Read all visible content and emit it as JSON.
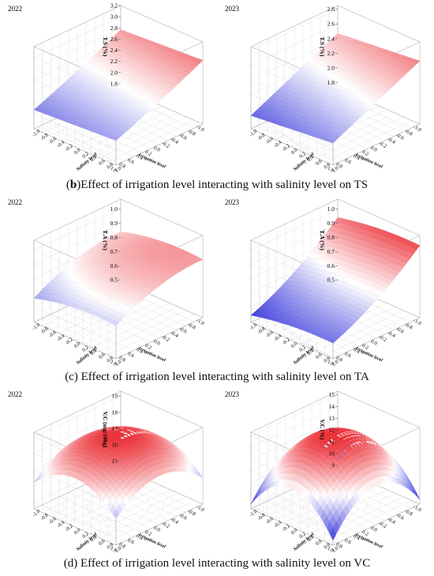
{
  "captions": {
    "b_letter": "b",
    "b_text": ")Effect of irrigation level interacting with salinity level on TS",
    "c_text": "(c) Effect of irrigation level interacting with salinity level on TA",
    "d_text": "(d) Effect of irrigation level interacting with salinity level on VC"
  },
  "axis_labels": {
    "x": "Irrigation level",
    "y": "Salinity level"
  },
  "axis_ticks": [
    "-1.0",
    "-0.8",
    "-0.6",
    "-0.4",
    "-0.2",
    "0.0",
    "0.2",
    "0.4",
    "0.6",
    "0.8",
    "1.0"
  ],
  "colors": {
    "high": "#e8141c",
    "mid": "#ffffff",
    "low": "#1a1ad6"
  },
  "chart_data": [
    {
      "id": "ts2022",
      "type": "surface",
      "year": "2022",
      "zlabel": "T.S (%)",
      "zticks": [
        "1.8",
        "2.0",
        "2.2",
        "2.4",
        "2.6",
        "2.8",
        "3.0",
        "3.2"
      ],
      "zlim": [
        1.73,
        3.2
      ],
      "model": {
        "a0": 2.45,
        "a1": -0.35,
        "a2": 0.05,
        "a11": 0.02,
        "a22": 0.0,
        "a12": 0.0
      },
      "xlim": [
        -1,
        1
      ],
      "ylim": [
        -1,
        1
      ],
      "grid": true
    },
    {
      "id": "ts2023",
      "type": "surface",
      "year": "2023",
      "zlabel": "T.S (%)",
      "zticks": [
        "1.8",
        "2.0",
        "2.2",
        "2.4",
        "2.6",
        "2.8"
      ],
      "zlim": [
        1.73,
        2.85
      ],
      "model": {
        "a0": 2.25,
        "a1": -0.28,
        "a2": 0.06,
        "a11": 0.0,
        "a22": 0.0,
        "a12": 0.0
      },
      "xlim": [
        -1,
        1
      ],
      "ylim": [
        -1,
        1
      ],
      "grid": true
    },
    {
      "id": "ta2022",
      "type": "surface",
      "year": "2022",
      "zlabel": "T.A (%)",
      "zticks": [
        "0.5",
        "0.6",
        "0.7",
        "0.8",
        "0.9",
        "1.0"
      ],
      "zlim": [
        0.49,
        1.07
      ],
      "model": {
        "a0": 0.86,
        "a1": -0.09,
        "a2": 0.03,
        "a11": -0.05,
        "a22": -0.03,
        "a12": 0.0
      },
      "xlim": [
        -1,
        1
      ],
      "ylim": [
        -1,
        1
      ],
      "grid": true
    },
    {
      "id": "ta2023",
      "type": "surface",
      "year": "2023",
      "zlabel": "T.A (%)",
      "zticks": [
        "0.5",
        "0.6",
        "0.7",
        "0.8",
        "0.9",
        "1.0"
      ],
      "zlim": [
        0.49,
        1.07
      ],
      "model": {
        "a0": 0.75,
        "a1": -0.2,
        "a2": 0.03,
        "a11": 0.04,
        "a22": -0.02,
        "a12": 0.0
      },
      "xlim": [
        -1,
        1
      ],
      "ylim": [
        -1,
        1
      ],
      "grid": true
    },
    {
      "id": "vc2022",
      "type": "surface",
      "year": "2022",
      "zlabel": "V.C (mg/100g)",
      "zticks": [
        "15",
        "16",
        "17",
        "18",
        "19"
      ],
      "zlim": [
        14.6,
        19.3
      ],
      "model": {
        "a0": 19.0,
        "a1": 0.0,
        "a2": 0.0,
        "a11": -1.4,
        "a22": -1.4,
        "a12": 0.0
      },
      "xlim": [
        -1,
        1
      ],
      "ylim": [
        -1,
        1
      ],
      "grid": true
    },
    {
      "id": "vc2023",
      "type": "surface",
      "year": "2023",
      "zlabel": "V.C (%)",
      "zticks": [
        "9",
        "10",
        "11",
        "12",
        "13",
        "14",
        "15"
      ],
      "zlim": [
        8.8,
        15.3
      ],
      "model": {
        "a0": 15.0,
        "a1": 0.0,
        "a2": 0.0,
        "a11": -2.9,
        "a22": -2.9,
        "a12": 0.0
      },
      "xlim": [
        -1,
        1
      ],
      "ylim": [
        -1,
        1
      ],
      "grid": true
    }
  ]
}
